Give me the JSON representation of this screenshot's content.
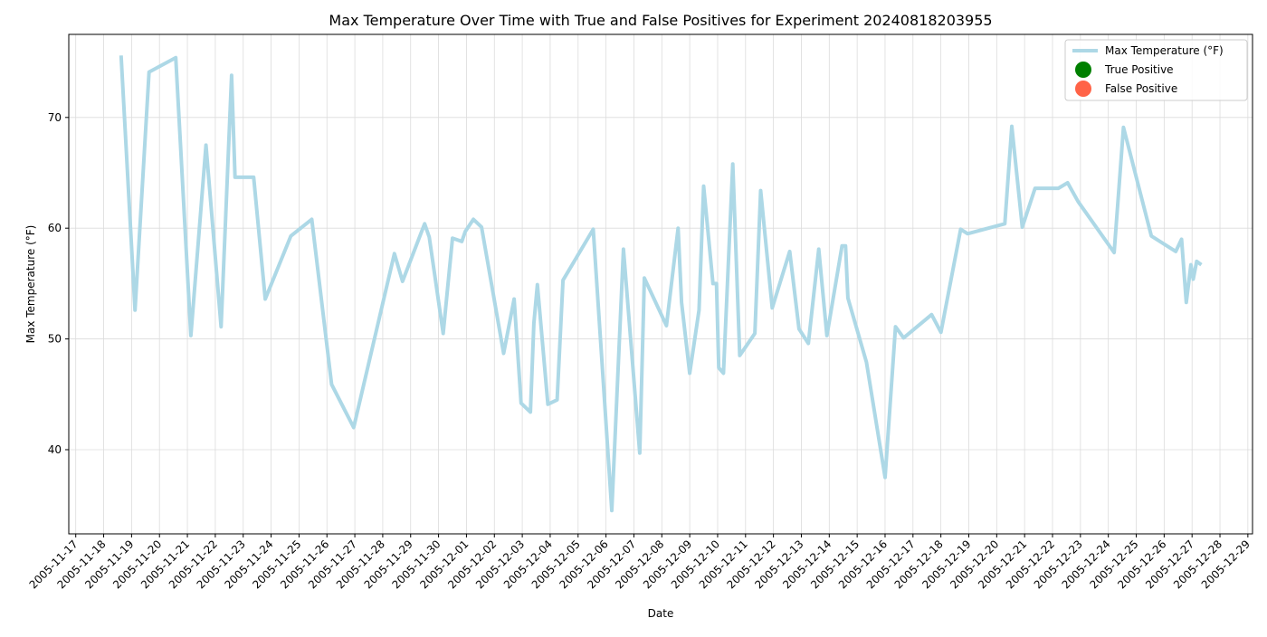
{
  "chart_data": {
    "type": "line",
    "title": "Max Temperature Over Time with True and False Positives for Experiment 20240818203955",
    "x_label": "Date",
    "y_label": "Max Temperature (°F)",
    "x": [
      "2005-11-18 15:00",
      "2005-11-19 03:00",
      "2005-11-19 15:00",
      "2005-11-20 14:00",
      "2005-11-21 03:00",
      "2005-11-21 16:00",
      "2005-11-22 05:00",
      "2005-11-22 14:00",
      "2005-11-22 17:00",
      "2005-11-23 09:00",
      "2005-11-23 19:00",
      "2005-11-24 17:00",
      "2005-11-25 11:00",
      "2005-11-26 04:00",
      "2005-11-26 23:00",
      "2005-11-28 10:00",
      "2005-11-28 17:00",
      "2005-11-29 12:00",
      "2005-11-29 16:00",
      "2005-11-30 04:00",
      "2005-11-30 12:00",
      "2005-11-30 20:00",
      "2005-11-30 23:00",
      "2005-12-01 06:00",
      "2005-12-01 13:00",
      "2005-12-02 08:00",
      "2005-12-02 17:00",
      "2005-12-02 23:00",
      "2005-12-03 07:00",
      "2005-12-03 10:00",
      "2005-12-03 13:00",
      "2005-12-03 22:00",
      "2005-12-04 06:00",
      "2005-12-04 11:00",
      "2005-12-05 13:00",
      "2005-12-06 05:00",
      "2005-12-06 15:00",
      "2005-12-07 05:00",
      "2005-12-07 09:00",
      "2005-12-08 04:00",
      "2005-12-08 14:00",
      "2005-12-08 17:00",
      "2005-12-09 00:00",
      "2005-12-09 08:00",
      "2005-12-09 12:00",
      "2005-12-09 20:00",
      "2005-12-09 23:00",
      "2005-12-10 01:00",
      "2005-12-10 05:00",
      "2005-12-10 13:00",
      "2005-12-10 19:00",
      "2005-12-11 08:00",
      "2005-12-11 13:00",
      "2005-12-11 23:00",
      "2005-12-12 14:00",
      "2005-12-12 22:00",
      "2005-12-13 06:00",
      "2005-12-13 15:00",
      "2005-12-13 22:00",
      "2005-12-14 11:00",
      "2005-12-14 14:00",
      "2005-12-14 16:00",
      "2005-12-15 08:00",
      "2005-12-16 00:00",
      "2005-12-16 09:00",
      "2005-12-16 16:00",
      "2005-12-17 16:00",
      "2005-12-18 00:00",
      "2005-12-18 17:00",
      "2005-12-18 23:00",
      "2005-12-20 07:00",
      "2005-12-20 13:00",
      "2005-12-20 22:00",
      "2005-12-21 09:00",
      "2005-12-22 05:00",
      "2005-12-22 13:00",
      "2005-12-22 22:00",
      "2005-12-24 05:00",
      "2005-12-24 13:00",
      "2005-12-25 13:00",
      "2005-12-26 10:00",
      "2005-12-26 15:00",
      "2005-12-26 19:00",
      "2005-12-26 23:00",
      "2005-12-27 01:00",
      "2005-12-27 04:00",
      "2005-12-27 08:00"
    ],
    "series": [
      {
        "name": "Max Temperature (°F)",
        "color": "#add8e6",
        "values": [
          75.6,
          52.6,
          74.1,
          75.4,
          50.3,
          67.5,
          51.1,
          73.8,
          64.6,
          64.6,
          53.6,
          59.3,
          60.8,
          45.9,
          42.0,
          57.7,
          55.2,
          60.4,
          59.2,
          50.5,
          59.1,
          58.8,
          59.7,
          60.8,
          60.1,
          48.7,
          53.6,
          44.2,
          43.4,
          51.4,
          54.9,
          44.1,
          44.5,
          55.3,
          59.9,
          34.5,
          58.1,
          39.7,
          55.5,
          51.2,
          60.0,
          53.3,
          46.9,
          52.6,
          63.8,
          55.0,
          55.0,
          47.4,
          46.9,
          65.8,
          48.5,
          50.5,
          63.4,
          52.8,
          57.9,
          50.9,
          49.6,
          58.1,
          50.3,
          58.4,
          58.4,
          53.7,
          47.9,
          37.5,
          51.1,
          50.1,
          52.2,
          50.6,
          59.9,
          59.5,
          60.4,
          69.2,
          60.1,
          63.6,
          63.6,
          64.1,
          62.4,
          57.8,
          69.1,
          59.3,
          57.9,
          59.0,
          53.3,
          56.7,
          55.4,
          57.0,
          56.7
        ]
      }
    ],
    "marker_legend": [
      {
        "name": "True Positive",
        "color": "#008000"
      },
      {
        "name": "False Positive",
        "color": "#ff6347"
      }
    ],
    "xlim": [
      "2005-11-16 18:00",
      "2005-12-29 04:00"
    ],
    "xticks": [
      "2005-11-17",
      "2005-11-18",
      "2005-11-19",
      "2005-11-20",
      "2005-11-21",
      "2005-11-22",
      "2005-11-23",
      "2005-11-24",
      "2005-11-25",
      "2005-11-26",
      "2005-11-27",
      "2005-11-28",
      "2005-11-29",
      "2005-11-30",
      "2005-12-01",
      "2005-12-02",
      "2005-12-03",
      "2005-12-04",
      "2005-12-05",
      "2005-12-06",
      "2005-12-07",
      "2005-12-08",
      "2005-12-09",
      "2005-12-10",
      "2005-12-11",
      "2005-12-12",
      "2005-12-13",
      "2005-12-14",
      "2005-12-15",
      "2005-12-16",
      "2005-12-17",
      "2005-12-18",
      "2005-12-19",
      "2005-12-20",
      "2005-12-21",
      "2005-12-22",
      "2005-12-23",
      "2005-12-24",
      "2005-12-25",
      "2005-12-26",
      "2005-12-27",
      "2005-12-28",
      "2005-12-29"
    ],
    "ylim": [
      32.4,
      77.5
    ],
    "yticks": [
      40,
      50,
      60,
      70
    ],
    "grid": true,
    "legend": "upper right"
  }
}
